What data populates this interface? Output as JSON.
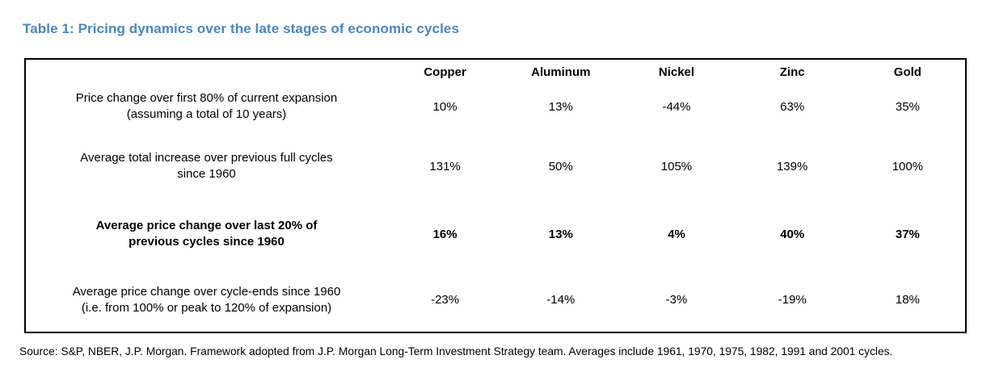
{
  "title": {
    "text": "Table 1: Pricing dynamics over the late stages of economic cycles",
    "color": "#4a86be"
  },
  "table": {
    "columns": [
      "Copper",
      "Aluminum",
      "Nickel",
      "Zinc",
      "Gold"
    ],
    "rows": [
      {
        "lines": [
          "Price change over first 80% of current expansion",
          "(assuming a total of 10 years)"
        ],
        "values": [
          "10%",
          "13%",
          "-44%",
          "63%",
          "35%"
        ],
        "bold": false
      },
      {
        "lines": [
          "Average total increase over previous full cycles",
          "since 1960"
        ],
        "values": [
          "131%",
          "50%",
          "105%",
          "139%",
          "100%"
        ],
        "bold": false
      },
      {
        "lines": [
          "Average price change over last 20% of",
          "previous cycles since 1960"
        ],
        "values": [
          "16%",
          "13%",
          "4%",
          "40%",
          "37%"
        ],
        "bold": true
      },
      {
        "lines": [
          "Average price change over cycle-ends since 1960",
          "(i.e. from 100% or peak to 120% of expansion)"
        ],
        "values": [
          "-23%",
          "-14%",
          "-3%",
          "-19%",
          "18%"
        ],
        "bold": false
      }
    ],
    "border_color": "#000000"
  },
  "source": {
    "text": "Source: S&P, NBER, J.P. Morgan. Framework adopted from J.P. Morgan Long-Term Investment Strategy team. Averages include 1961, 1970, 1975, 1982, 1991 and 2001 cycles."
  },
  "chart_data": {
    "type": "table",
    "title": "Table 1: Pricing dynamics over the late stages of economic cycles",
    "columns": [
      "",
      "Copper",
      "Aluminum",
      "Nickel",
      "Zinc",
      "Gold"
    ],
    "rows": [
      [
        "Price change over first 80% of current expansion (assuming a total of 10 years)",
        "10%",
        "13%",
        "-44%",
        "63%",
        "35%"
      ],
      [
        "Average total increase over previous full cycles since 1960",
        "131%",
        "50%",
        "105%",
        "139%",
        "100%"
      ],
      [
        "Average price change over last 20% of previous cycles since 1960",
        "16%",
        "13%",
        "4%",
        "40%",
        "37%"
      ],
      [
        "Average price change over cycle-ends since 1960 (i.e. from 100% or peak to 120% of expansion)",
        "-23%",
        "-14%",
        "-3%",
        "-19%",
        "18%"
      ]
    ],
    "emphasized_row_index": 2,
    "footnote": "Source: S&P, NBER, J.P. Morgan. Framework adopted from J.P. Morgan Long-Term Investment Strategy team. Averages include 1961, 1970, 1975, 1982, 1991 and 2001 cycles."
  }
}
